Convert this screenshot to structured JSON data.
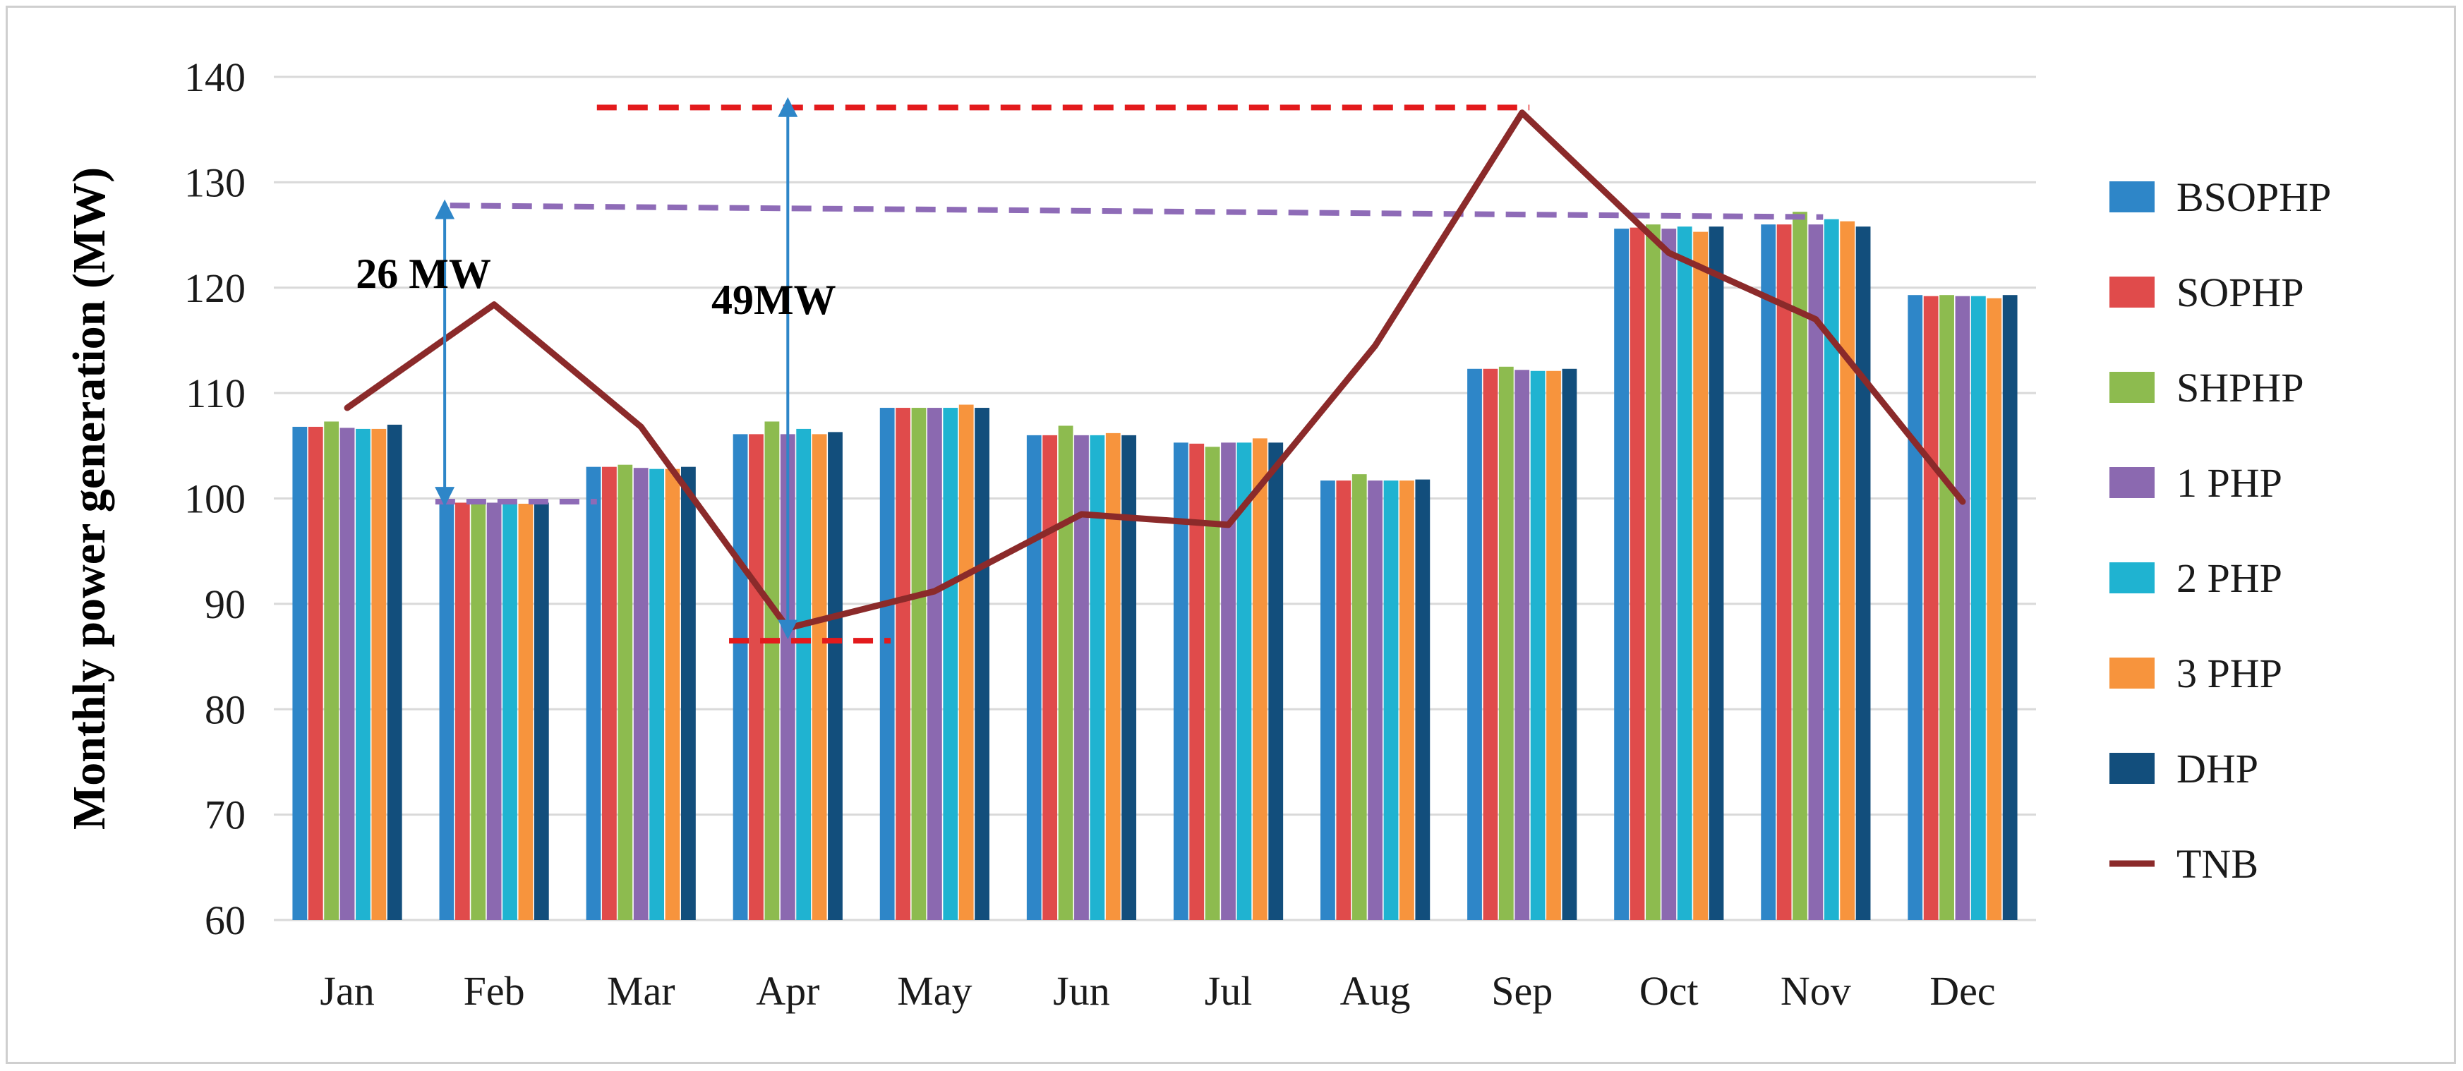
{
  "chart_data": {
    "type": "bar",
    "ylabel": "Monthly power generation (MW)",
    "xlabel": "",
    "ylim": [
      60,
      140
    ],
    "yticks": [
      60,
      70,
      80,
      90,
      100,
      110,
      120,
      130,
      140
    ],
    "grid": true,
    "legend_position": "right",
    "categories": [
      "Jan",
      "Feb",
      "Mar",
      "Apr",
      "May",
      "Jun",
      "Jul",
      "Aug",
      "Sep",
      "Oct",
      "Nov",
      "Dec"
    ],
    "series": [
      {
        "name": "BSOPHP",
        "color": "#2E86C8",
        "values": [
          106.8,
          99.6,
          103.0,
          106.1,
          108.6,
          106.0,
          105.3,
          101.7,
          112.3,
          125.6,
          126.0,
          119.3
        ]
      },
      {
        "name": "SOPHP",
        "color": "#E04B4B",
        "values": [
          106.8,
          99.6,
          103.0,
          106.1,
          108.6,
          106.0,
          105.2,
          101.7,
          112.3,
          125.7,
          126.0,
          119.2
        ]
      },
      {
        "name": "SHPHP",
        "color": "#8DBB4F",
        "values": [
          107.3,
          99.9,
          103.2,
          107.3,
          108.6,
          106.9,
          104.9,
          102.3,
          112.5,
          126.0,
          127.2,
          119.3
        ]
      },
      {
        "name": "1 PHP",
        "color": "#8B69B0",
        "values": [
          106.7,
          99.6,
          102.9,
          106.1,
          108.6,
          106.0,
          105.3,
          101.7,
          112.2,
          125.6,
          126.0,
          119.2
        ]
      },
      {
        "name": "2 PHP",
        "color": "#1FB3D1",
        "values": [
          106.6,
          99.6,
          102.8,
          106.6,
          108.6,
          106.0,
          105.3,
          101.7,
          112.1,
          125.8,
          126.5,
          119.2
        ]
      },
      {
        "name": "3 PHP",
        "color": "#F7943D",
        "values": [
          106.6,
          99.5,
          102.8,
          106.1,
          108.9,
          106.2,
          105.7,
          101.7,
          112.1,
          125.3,
          126.3,
          119.0
        ]
      },
      {
        "name": "DHP",
        "color": "#124E7C",
        "values": [
          107.0,
          99.6,
          103.0,
          106.3,
          108.6,
          106.0,
          105.3,
          101.8,
          112.3,
          125.8,
          125.8,
          119.3
        ]
      }
    ],
    "line_series": {
      "name": "TNB",
      "color": "#8B2A2A",
      "values": [
        108.6,
        118.4,
        106.8,
        87.7,
        91.2,
        98.5,
        97.5,
        114.5,
        136.6,
        123.3,
        117.0,
        99.7
      ]
    },
    "annotations": [
      {
        "text": "26 MW",
        "type": "double-arrow",
        "x_category": "Feb",
        "from": 128.0,
        "to": 99.6
      },
      {
        "text": "49MW",
        "type": "double-arrow",
        "x_category": "Apr",
        "from": 137.7,
        "to": 87.0
      }
    ],
    "reference_lines": [
      {
        "color": "#E31A1C",
        "value": 137.1,
        "from": "Mar",
        "to": "Sep",
        "style": "dashed"
      },
      {
        "color": "#E31A1C",
        "value": 86.5,
        "from": "Apr",
        "to": "Apr",
        "style": "dashed"
      },
      {
        "color": "#8E6BB7",
        "value": 127.8,
        "to_value": 126.7,
        "from": "Feb",
        "to": "Nov",
        "style": "dashed"
      },
      {
        "color": "#8E6BB7",
        "value": 99.7,
        "from": "Feb",
        "to": "Feb",
        "style": "dashed"
      }
    ]
  }
}
